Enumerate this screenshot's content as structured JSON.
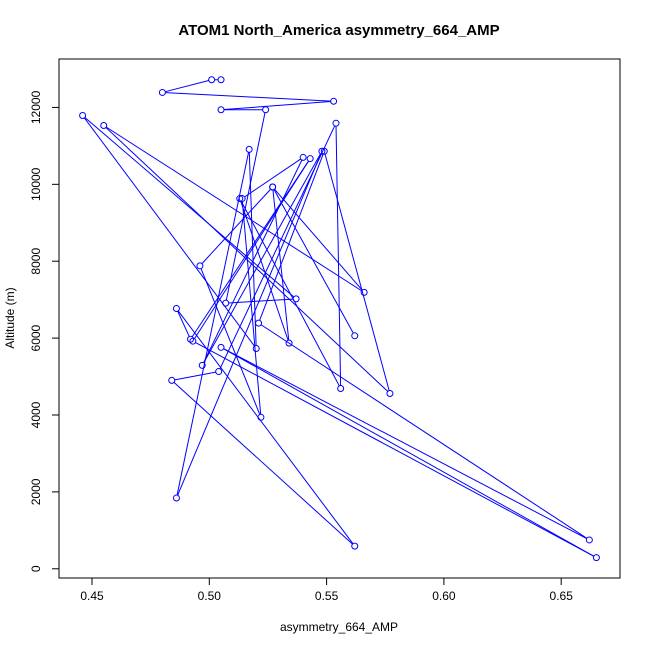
{
  "chart_data": {
    "type": "line",
    "title": "ATOM1 North_America asymmetry_664_AMP",
    "xlabel": "asymmetry_664_AMP",
    "ylabel": "Altitude (m)",
    "xlim": [
      0.4455,
      0.6655
    ],
    "ylim": [
      300,
      12720
    ],
    "xticks": [
      0.45,
      0.5,
      0.55,
      0.6,
      0.65
    ],
    "xtick_labels": [
      "0.45",
      "0.50",
      "0.55",
      "0.60",
      "0.65"
    ],
    "yticks": [
      0,
      2000,
      4000,
      6000,
      8000,
      10000,
      12000
    ],
    "ytick_labels": [
      "0",
      "2000",
      "4000",
      "6000",
      "8000",
      "10000",
      "12000"
    ],
    "grid": false,
    "series_color": "#0000ff",
    "marker": "open-circle",
    "points": [
      {
        "x": 0.505,
        "y": 12720
      },
      {
        "x": 0.501,
        "y": 12720
      },
      {
        "x": 0.48,
        "y": 12390
      },
      {
        "x": 0.553,
        "y": 12160
      },
      {
        "x": 0.505,
        "y": 11940
      },
      {
        "x": 0.524,
        "y": 11940
      },
      {
        "x": 0.507,
        "y": 6910
      },
      {
        "x": 0.537,
        "y": 7020
      },
      {
        "x": 0.446,
        "y": 11790
      },
      {
        "x": 0.52,
        "y": 5730
      },
      {
        "x": 0.517,
        "y": 10910
      },
      {
        "x": 0.486,
        "y": 1840
      },
      {
        "x": 0.548,
        "y": 10860
      },
      {
        "x": 0.497,
        "y": 5290
      },
      {
        "x": 0.54,
        "y": 10700
      },
      {
        "x": 0.514,
        "y": 9630
      },
      {
        "x": 0.522,
        "y": 3940
      },
      {
        "x": 0.496,
        "y": 7880
      },
      {
        "x": 0.527,
        "y": 9930
      },
      {
        "x": 0.534,
        "y": 5870
      },
      {
        "x": 0.513,
        "y": 9630
      },
      {
        "x": 0.556,
        "y": 4690
      },
      {
        "x": 0.554,
        "y": 11590
      },
      {
        "x": 0.504,
        "y": 5130
      },
      {
        "x": 0.484,
        "y": 4900
      },
      {
        "x": 0.562,
        "y": 590
      },
      {
        "x": 0.486,
        "y": 6770
      },
      {
        "x": 0.492,
        "y": 5970
      },
      {
        "x": 0.543,
        "y": 10670
      },
      {
        "x": 0.493,
        "y": 5920
      },
      {
        "x": 0.665,
        "y": 290
      },
      {
        "x": 0.505,
        "y": 5760
      },
      {
        "x": 0.662,
        "y": 750
      },
      {
        "x": 0.521,
        "y": 6390
      },
      {
        "x": 0.549,
        "y": 10860
      },
      {
        "x": 0.577,
        "y": 4560
      },
      {
        "x": 0.455,
        "y": 11530
      },
      {
        "x": 0.566,
        "y": 7190
      },
      {
        "x": 0.527,
        "y": 9930
      },
      {
        "x": 0.562,
        "y": 6060
      }
    ]
  }
}
